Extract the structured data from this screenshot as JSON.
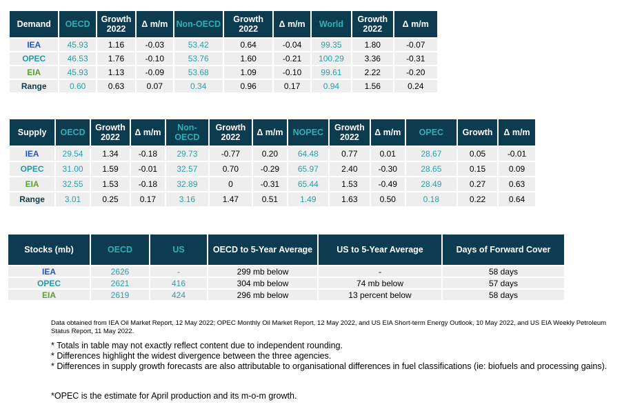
{
  "demand": {
    "headers": [
      "Demand",
      "OECD",
      "Growth 2022",
      "Δ m/m",
      "Non-OECD",
      "Growth 2022",
      "Δ m/m",
      "World",
      "Growth 2022",
      "Δ m/m"
    ],
    "rows": [
      [
        "IEA",
        "45.93",
        "1.16",
        "-0.03",
        "53.42",
        "0.64",
        "-0.04",
        "99.35",
        "1.80",
        "-0.07"
      ],
      [
        "OPEC",
        "46.53",
        "1.76",
        "-0.10",
        "53.76",
        "1.60",
        "-0.21",
        "100.29",
        "3.36",
        "-0.31"
      ],
      [
        "EIA",
        "45.93",
        "1.13",
        "-0.09",
        "53.68",
        "1.09",
        "-0.10",
        "99.61",
        "2.22",
        "-0.20"
      ],
      [
        "Range",
        "0.60",
        "0.63",
        "0.07",
        "0.34",
        "0.96",
        "0.17",
        "0.94",
        "1.56",
        "0.24"
      ]
    ]
  },
  "supply": {
    "headers": [
      "Supply",
      "OECD",
      "Growth 2022",
      "Δ m/m",
      "Non-OECD",
      "Growth 2022",
      "Δ m/m",
      "NOPEC",
      "Growth 2022",
      "Δ m/m",
      "OPEC",
      "Growth",
      "Δ m/m"
    ],
    "rows": [
      [
        "IEA",
        "29.54",
        "1.34",
        "-0.18",
        "29.73",
        "-0.77",
        "0.20",
        "64.48",
        "0.77",
        "0.01",
        "28.67",
        "0.05",
        "-0.01"
      ],
      [
        "OPEC",
        "31.00",
        "1.59",
        "-0.01",
        "32.57",
        "0.70",
        "-0.29",
        "65.97",
        "2.40",
        "-0.30",
        "28.65",
        "0.15",
        "0.09"
      ],
      [
        "EIA",
        "32.55",
        "1.53",
        "-0.18",
        "32.89",
        "0",
        "-0.31",
        "65.44",
        "1.53",
        "-0.49",
        "28.49",
        "0.27",
        "0.63"
      ],
      [
        "Range",
        "3.01",
        "0.25",
        "0.17",
        "3.16",
        "1.47",
        "0.51",
        "1.49",
        "1.63",
        "0.50",
        "0.18",
        "0.22",
        "0.64"
      ]
    ]
  },
  "stocks": {
    "headers": [
      "Stocks (mb)",
      "OECD",
      "US",
      "OECD to 5-Year Average",
      "US to 5-Year Average",
      "Days of Forward Cover"
    ],
    "rows": [
      [
        "IEA",
        "2626",
        "-",
        "299 mb below",
        "-",
        "58 days"
      ],
      [
        "OPEC",
        "2621",
        "416",
        "304 mb below",
        "74 mb below",
        "57 days"
      ],
      [
        "EIA",
        "2619",
        "424",
        "296 mb below",
        "13 percent below",
        "58 days"
      ]
    ]
  },
  "source": "Data obtained from IEA Oil Market Report, 12 May 2022; OPEC Monthly Oil Market Report, 12 May 2022, and US EIA Short-term Energy Outlook, 10 May 2022, and US EIA Weekly Petroleum Status Report, 11 May 2022.",
  "notes": [
    "* Totals in table may not exactly reflect content due to independent rounding.",
    "* Differences highlight the widest divergence between the three agencies.",
    "* Differences in supply growth forecasts are also attributable to organisational differences in fuel classifications (ie: biofuels and processing gains)."
  ],
  "opec_note": "*OPEC is the estimate for April production and its m-o-m growth.",
  "colors": {
    "header_bg": "#0d3b4f",
    "teal": "#2a9fab",
    "cell_bg": "#eeeeee",
    "iea": "#2554c7",
    "opec": "#1d9ca5",
    "eia": "#5c9e2f"
  }
}
